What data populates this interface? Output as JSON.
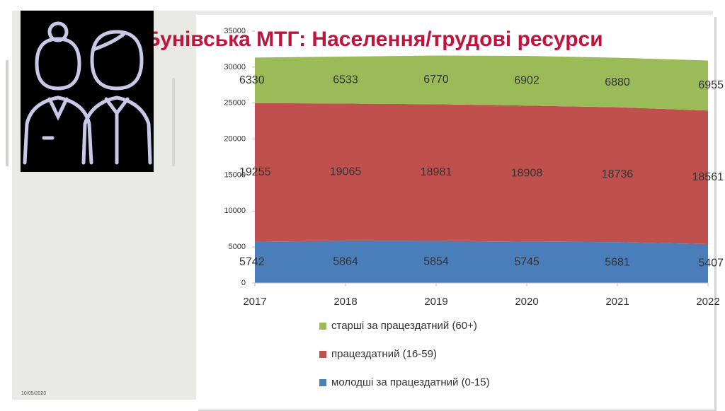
{
  "chart_data": {
    "type": "stacked_area",
    "title": "Бунівська МТГ: Населення/трудові ресурси",
    "date": "10/05/2023",
    "x": [
      2017,
      2018,
      2019,
      2020,
      2021,
      2022
    ],
    "series": [
      {
        "name": "молодші за працездатний (0-15)",
        "color": "#4a7ebb",
        "values": [
          5742,
          5864,
          5854,
          5745,
          5681,
          5407
        ]
      },
      {
        "name": "працездатний (16-59)",
        "color": "#c0504d",
        "values": [
          19255,
          19065,
          18981,
          18908,
          18736,
          18561
        ]
      },
      {
        "name": "старші за працездатний (60+)",
        "color": "#9bbb59",
        "values": [
          6330,
          6533,
          6770,
          6902,
          6880,
          6955
        ]
      }
    ],
    "ylim": [
      0,
      35000
    ],
    "yticks": [
      0,
      5000,
      10000,
      15000,
      20000,
      25000,
      30000,
      35000
    ],
    "xlim": [
      2017,
      2022
    ],
    "xticks": [
      2017,
      2018,
      2019,
      2020,
      2021,
      2022
    ]
  }
}
